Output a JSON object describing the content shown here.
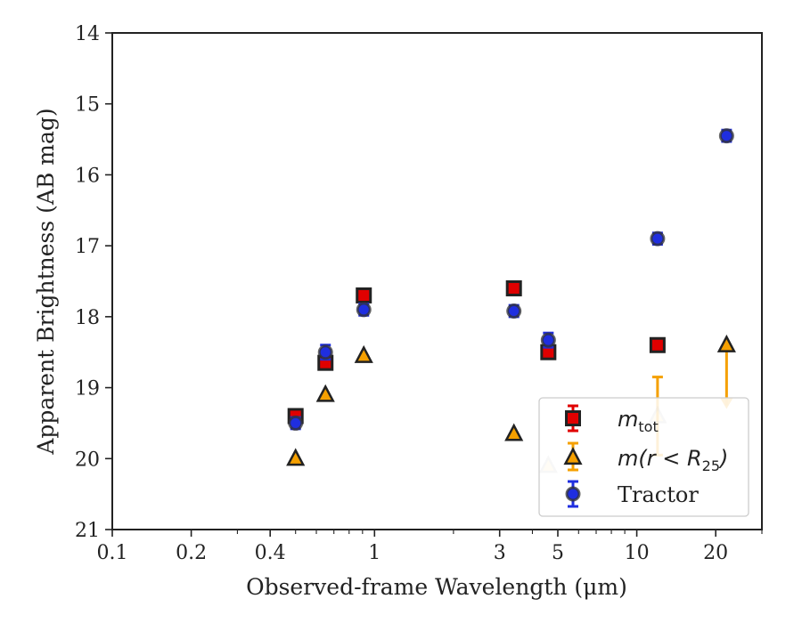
{
  "chart_data": {
    "type": "scatter",
    "xscale": "log",
    "xlim": [
      0.1,
      30
    ],
    "ylim": [
      21,
      14
    ],
    "y_inverted": true,
    "xlabel": "Observed-frame Wavelength (μm)",
    "ylabel": "Apparent Brightness (AB mag)",
    "xticks": [
      {
        "value": 0.1,
        "label": "0.1"
      },
      {
        "value": 0.2,
        "label": "0.2"
      },
      {
        "value": 0.4,
        "label": "0.4"
      },
      {
        "value": 1,
        "label": "1"
      },
      {
        "value": 3,
        "label": "3"
      },
      {
        "value": 5,
        "label": "5"
      },
      {
        "value": 10,
        "label": "10"
      },
      {
        "value": 20,
        "label": "20"
      }
    ],
    "yticks": [
      {
        "value": 14,
        "label": "14"
      },
      {
        "value": 15,
        "label": "15"
      },
      {
        "value": 16,
        "label": "16"
      },
      {
        "value": 17,
        "label": "17"
      },
      {
        "value": 18,
        "label": "18"
      },
      {
        "value": 19,
        "label": "19"
      },
      {
        "value": 20,
        "label": "20"
      },
      {
        "value": 21,
        "label": "21"
      }
    ],
    "legend_position": "lower-right",
    "series": [
      {
        "name": "m_tot",
        "legend_main": "m",
        "legend_sub": "tot",
        "marker": "square",
        "color": "#e00000",
        "edge": "#222222",
        "points": [
          {
            "x": 0.5,
            "y": 19.4,
            "err": 0.05
          },
          {
            "x": 0.65,
            "y": 18.65,
            "err": 0.05
          },
          {
            "x": 0.91,
            "y": 17.7,
            "err": 0.05
          },
          {
            "x": 3.4,
            "y": 17.6,
            "err": 0.05
          },
          {
            "x": 4.6,
            "y": 18.5,
            "err": 0.05
          },
          {
            "x": 12.0,
            "y": 18.4,
            "err": 0.05
          }
        ]
      },
      {
        "name": "m(r<R25)",
        "legend_main": "m(r < R",
        "legend_sub": "25",
        "legend_close": ")",
        "marker": "triangle",
        "color": "#f5a000",
        "edge": "#222222",
        "points": [
          {
            "x": 0.5,
            "y": 20.0
          },
          {
            "x": 0.65,
            "y": 19.1
          },
          {
            "x": 0.91,
            "y": 18.55
          },
          {
            "x": 3.4,
            "y": 19.65
          },
          {
            "x": 4.6,
            "y": 20.1,
            "faded": true
          },
          {
            "x": 12.0,
            "y": 19.4,
            "faded": true,
            "err_low": 0.55,
            "err_high": 0.55
          },
          {
            "x": 22.0,
            "y": 18.4,
            "upper_limit_to": 19.25
          }
        ]
      },
      {
        "name": "Tractor",
        "legend_main": "Tractor",
        "marker": "circle",
        "color": "#1f2ee0",
        "edge": "#333333",
        "points": [
          {
            "x": 0.5,
            "y": 19.5,
            "err": 0.08
          },
          {
            "x": 0.65,
            "y": 18.5,
            "err": 0.1
          },
          {
            "x": 0.91,
            "y": 17.9,
            "err": 0.08
          },
          {
            "x": 3.4,
            "y": 17.92,
            "err": 0.08
          },
          {
            "x": 4.6,
            "y": 18.33,
            "err": 0.1
          },
          {
            "x": 12.0,
            "y": 16.9,
            "err": 0.08
          },
          {
            "x": 22.0,
            "y": 15.45,
            "err": 0.08
          }
        ]
      }
    ]
  }
}
